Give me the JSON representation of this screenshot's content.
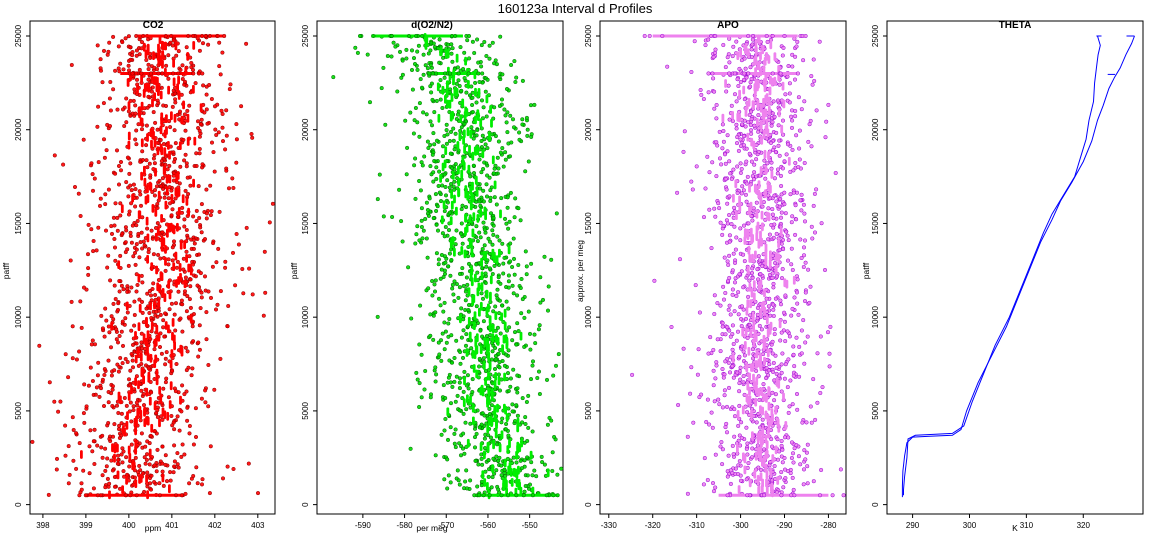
{
  "figure": {
    "title": "160123a   Interval d Profiles"
  },
  "colors": {
    "co2": "#ff0000",
    "o2n2": "#00ee00",
    "apo": "#ee82ee",
    "theta": "#0000ff",
    "edge": "#8b0000"
  },
  "chart_data": [
    {
      "type": "scatter",
      "title": "CO2",
      "xlabel": "ppm",
      "ylabel": "patff",
      "xlim": [
        397.7,
        403.4
      ],
      "ylim": [
        -500,
        25800
      ],
      "xticks": [
        398,
        399,
        400,
        401,
        402,
        403
      ],
      "yticks": [
        0,
        5000,
        10000,
        15000,
        20000,
        25000
      ],
      "profile": {
        "y": [
          500,
          2500,
          5000,
          7500,
          10000,
          12500,
          15000,
          17500,
          20000,
          23000,
          25000
        ],
        "x": [
          400.2,
          399.9,
          400.3,
          400.4,
          400.6,
          400.9,
          400.7,
          400.8,
          400.8,
          400.6,
          400.8
        ]
      },
      "spread": 0.8,
      "dense_rows": [
        {
          "y": 500,
          "x": [
            399.0,
            401.3
          ]
        },
        {
          "y": 23000,
          "x": [
            399.8,
            401.5
          ]
        },
        {
          "y": 25000,
          "x": [
            400.2,
            402.2
          ]
        }
      ]
    },
    {
      "type": "scatter",
      "title": "d(O2/N2)",
      "xlabel": "per meg",
      "ylabel": "patff",
      "xlim": [
        -601,
        -542
      ],
      "ylim": [
        -500,
        25800
      ],
      "xticks": [
        -590,
        -580,
        -570,
        -560,
        -550
      ],
      "yticks": [
        0,
        5000,
        10000,
        15000,
        20000,
        25000
      ],
      "profile": {
        "y": [
          500,
          2500,
          5000,
          7500,
          10000,
          12500,
          15000,
          17500,
          20000,
          23000,
          25000
        ],
        "x": [
          -554,
          -557,
          -560,
          -561,
          -561,
          -562,
          -565,
          -566,
          -564,
          -568,
          -573
        ]
      },
      "spread": 7,
      "dense_rows": [
        {
          "y": 500,
          "x": [
            -563,
            -543
          ]
        },
        {
          "y": 23000,
          "x": [
            -574,
            -562
          ]
        },
        {
          "y": 25000,
          "x": [
            -588,
            -566
          ]
        }
      ]
    },
    {
      "type": "scatter",
      "title": "APO",
      "xlabel": "",
      "ylabel": "approx. per meg",
      "xlim": [
        -332,
        -276
      ],
      "ylim": [
        -500,
        25800
      ],
      "xticks": [
        -330,
        -320,
        -310,
        -300,
        -290,
        -280
      ],
      "yticks": [
        0,
        5000,
        10000,
        15000,
        20000,
        25000
      ],
      "profile": {
        "y": [
          500,
          2500,
          5000,
          7500,
          10000,
          12500,
          15000,
          17500,
          20000,
          23000,
          25000
        ],
        "x": [
          -296,
          -295,
          -296,
          -296,
          -296,
          -296,
          -296,
          -295,
          -295,
          -295,
          -299
        ]
      },
      "spread": 6,
      "dense_rows": [
        {
          "y": 500,
          "x": [
            -305,
            -280
          ]
        },
        {
          "y": 23000,
          "x": [
            -307,
            -287
          ]
        },
        {
          "y": 25000,
          "x": [
            -320,
            -287
          ]
        }
      ]
    },
    {
      "type": "line",
      "title": "THETA",
      "xlabel": "K",
      "ylabel": "patff",
      "xlim": [
        285.5,
        330.5
      ],
      "ylim": [
        -500,
        25800
      ],
      "xticks": [
        290,
        300,
        310,
        320
      ],
      "yticks": [
        0,
        5000,
        10000,
        15000,
        20000,
        25000
      ],
      "series": [
        {
          "x": [
            288.4,
            288.4,
            288.6,
            289.0,
            289.2,
            290.5,
            294.0,
            297.0,
            299.0,
            300.5,
            302.5,
            304.5,
            307.0,
            309.0,
            311.0,
            313.0,
            314.5,
            316.5,
            318.5,
            319.5,
            320.5,
            321.0,
            321.8,
            322.0,
            322.4,
            322.6,
            323.0,
            322.5,
            323.2
          ],
          "y": [
            500,
            800,
            1500,
            2500,
            3500,
            3700,
            3750,
            3800,
            4200,
            5500,
            7000,
            8500,
            10000,
            11500,
            13000,
            14500,
            15500,
            16500,
            17500,
            18500,
            19500,
            20500,
            21500,
            22500,
            23500,
            24000,
            24500,
            25000,
            25000
          ]
        },
        {
          "x": [
            288.2,
            288.2,
            288.3,
            288.6,
            289.0,
            290.0,
            293.0,
            297.0,
            298.5,
            299.5,
            301.5,
            304.0,
            306.5,
            308.5,
            310.5,
            312.5,
            314.5,
            316.0,
            318.0,
            320.0,
            321.5,
            322.5,
            323.5,
            324.5,
            325.5,
            326.5,
            327.5,
            328.5,
            329.0
          ],
          "y": [
            400,
            1000,
            1800,
            2600,
            3300,
            3600,
            3650,
            3700,
            4000,
            5000,
            6500,
            8000,
            9500,
            11000,
            12500,
            14000,
            15200,
            16200,
            17200,
            18300,
            19400,
            20500,
            21300,
            22200,
            22800,
            23300,
            24000,
            24600,
            25000
          ]
        },
        {
          "x": [
            324.3,
            325.6
          ],
          "y": [
            22950,
            22950
          ]
        },
        {
          "x": [
            322.3,
            323.2
          ],
          "y": [
            25000,
            25000
          ]
        },
        {
          "x": [
            327.6,
            329.0
          ],
          "y": [
            25000,
            25000
          ]
        }
      ]
    }
  ]
}
